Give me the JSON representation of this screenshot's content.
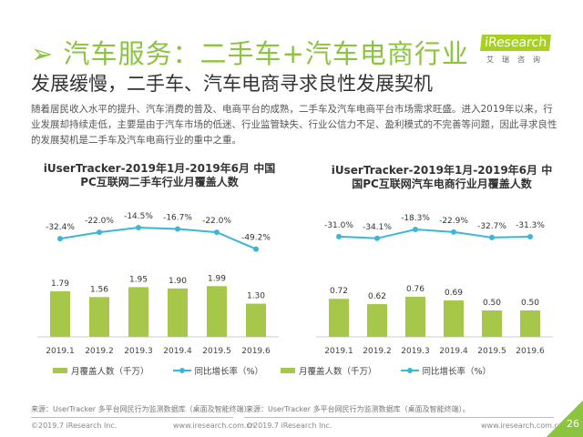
{
  "header": {
    "title": "➢ 汽车服务：二手车+汽车电商行业",
    "subtitle": "发展缓慢，二手车、汽车电商寻求良性发展契机",
    "body": "随着居民收入水平的提升、汽车消费的普及、电商平台的成熟，二手车及汽车电商平台市场需求旺盛。进入2019年以来，行业发展却持续走低，主要是由于汽车市场的低迷、行业监管缺失、行业公信力不足、盈利模式的不完善等问题，因此寻求良性的发展契机是二手车及汽车电商行业的重中之重。"
  },
  "logo": {
    "text": "iResearch",
    "cn": "艾瑞咨询"
  },
  "colors": {
    "bar": "#a7c74a",
    "line": "#3bb7d3",
    "accent": "#8cc43f"
  },
  "chart_data": [
    {
      "type": "bar+line",
      "title": "iUserTracker-2019年1月-2019年6月 中国PC互联网二手车行业月覆盖人数",
      "categories": [
        "2019.1",
        "2019.2",
        "2019.3",
        "2019.4",
        "2019.5",
        "2019.6"
      ],
      "series": [
        {
          "name": "月覆盖人数（千万）",
          "type": "bar",
          "values": [
            1.79,
            1.56,
            1.95,
            1.9,
            1.99,
            1.3
          ],
          "labels": [
            "1.79",
            "1.56",
            "1.95",
            "1.90",
            "1.99",
            "1.30"
          ]
        },
        {
          "name": "同比增长率（%）",
          "type": "line",
          "values": [
            -32.4,
            -22.0,
            -14.5,
            -16.7,
            -22.0,
            -49.2
          ],
          "labels": [
            "-32.4%",
            "-22.0%",
            "-14.5%",
            "-16.7%",
            "-22.0%",
            "-49.2%"
          ]
        }
      ],
      "source": "来源：UserTracker 多平台网民行为监测数据库（桌面及智能终端）。"
    },
    {
      "type": "bar+line",
      "title": "iUserTracker-2019年1月-2019年6月 中国PC互联网汽车电商行业月覆盖人数",
      "categories": [
        "2019.1",
        "2019.2",
        "2019.3",
        "2019.4",
        "2019.5",
        "2019.6"
      ],
      "series": [
        {
          "name": "月覆盖人数（千万）",
          "type": "bar",
          "values": [
            0.72,
            0.62,
            0.76,
            0.69,
            0.5,
            0.5
          ],
          "labels": [
            "0.72",
            "0.62",
            "0.76",
            "0.69",
            "0.50",
            "0.50"
          ]
        },
        {
          "name": "同比增长率（%）",
          "type": "line",
          "values": [
            -31.0,
            -34.1,
            -18.3,
            -22.9,
            -32.7,
            -31.3
          ],
          "labels": [
            "-31.0%",
            "-34.1%",
            "-18.3%",
            "-22.9%",
            "-32.7%",
            "-31.3%"
          ]
        }
      ],
      "source": "来源：UserTracker 多平台网民行为监测数据库（桌面及智能终端）。"
    }
  ],
  "footer": {
    "copyright": "©2019.7 iResearch Inc.",
    "url": "www.iresearch.com.cn",
    "page": "26"
  }
}
